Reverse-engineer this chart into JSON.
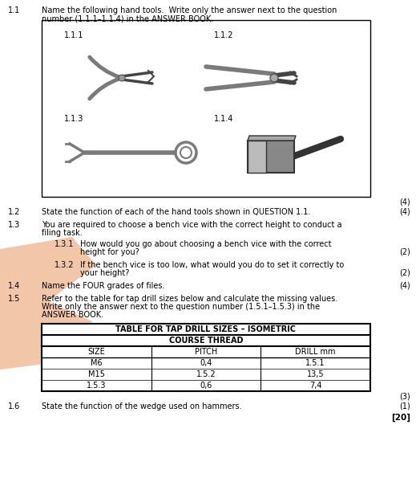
{
  "bg_color": "#ffffff",
  "text_color": "#000000",
  "fs": 7.0,
  "fs_bold": 7.0,
  "q1_1_num": "1.1",
  "q1_1_text_a": "Name the following hand tools.  Write only the answer next to the question",
  "q1_1_text_b": "number (1.1.1–1.1.4) in the ANSWER BOOK.",
  "q1_1_marks": "(4)",
  "q1_2_num": "1.2",
  "q1_2_text": "State the function of each of the hand tools shown in QUESTION 1.1.",
  "q1_2_marks": "(4)",
  "q1_3_num": "1.3",
  "q1_3_text_a": "You are required to choose a bench vice with the correct height to conduct a",
  "q1_3_text_b": "filing task.",
  "q1_3_1_num": "1.3.1",
  "q1_3_1_text_a": "How would you go about choosing a bench vice with the correct",
  "q1_3_1_text_b": "height for you?",
  "q1_3_1_marks": "(2)",
  "q1_3_2_num": "1.3.2",
  "q1_3_2_text_a": "If the bench vice is too low, what would you do to set it correctly to",
  "q1_3_2_text_b": "your height?",
  "q1_3_2_marks": "(2)",
  "q1_4_num": "1.4",
  "q1_4_text": "Name the FOUR grades of files.",
  "q1_4_marks": "(4)",
  "q1_5_num": "1.5",
  "q1_5_text_a": "Refer to the table for tap drill sizes below and calculate the missing values.",
  "q1_5_text_b": "Write only the answer next to the question number (1.5.1–1.5.3) in the",
  "q1_5_text_c": "ANSWER BOOK.",
  "table_title1": "TABLE FOR TAP DRILL SIZES – ISOMETRIC",
  "table_title2": "COURSE THREAD",
  "table_headers": [
    "SIZE",
    "PITCH",
    "DRILL mm"
  ],
  "table_rows": [
    [
      "M6",
      "0,4",
      "1.5.1"
    ],
    [
      "M15",
      "1.5.2",
      "13,5"
    ],
    [
      "1.5.3",
      "0,6",
      "7,4"
    ]
  ],
  "table_marks": "(3)",
  "q1_6_num": "1.6",
  "q1_6_text": "State the function of the wedge used on hammers.",
  "q1_6_marks": "(1)",
  "total_marks": "[20]",
  "watermark_color": "#E8A070"
}
